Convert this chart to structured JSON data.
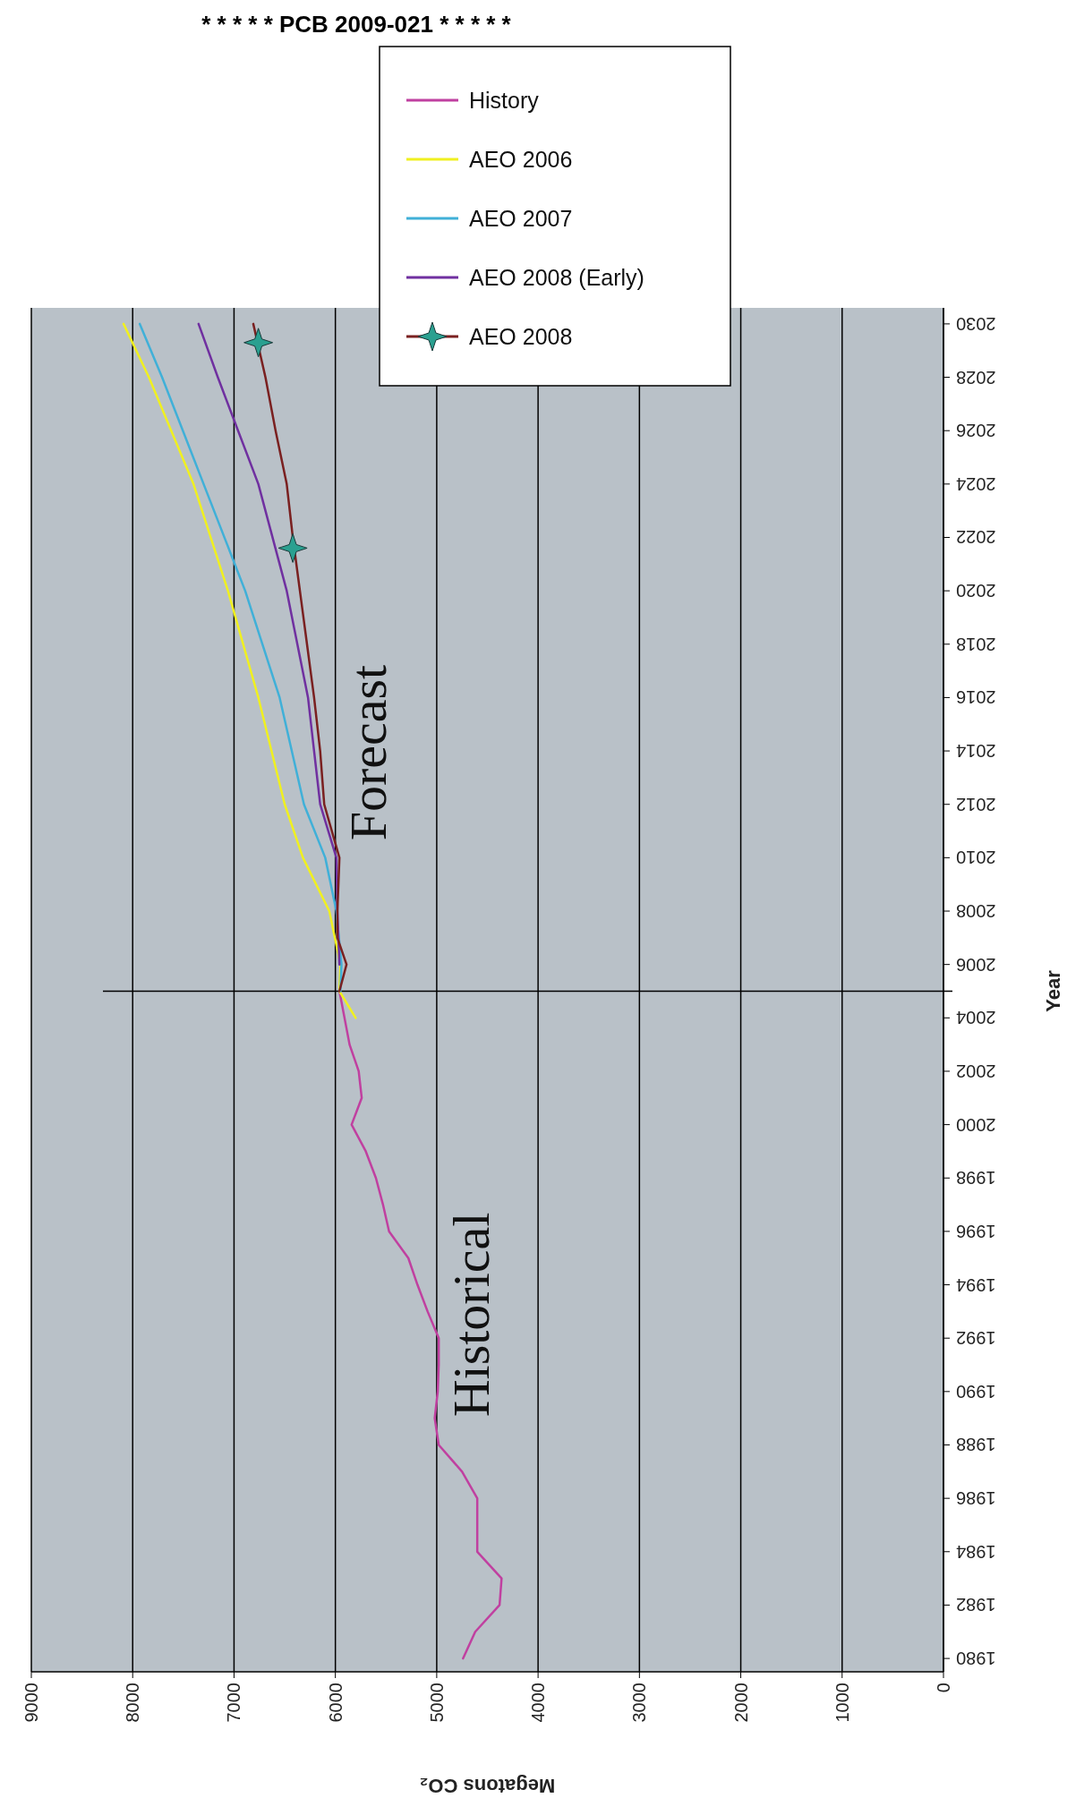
{
  "chart_data": {
    "type": "line",
    "xlabel": "Megatons CO₂",
    "ylabel": "Year",
    "xlim": [
      9000,
      0
    ],
    "xticks": [
      9000,
      8000,
      7000,
      6000,
      5000,
      4000,
      3000,
      2000,
      1000,
      0
    ],
    "ylim": [
      1979.5,
      2030.6
    ],
    "yticks": [
      1980,
      1982,
      1984,
      1986,
      1988,
      1990,
      1992,
      1994,
      1996,
      1998,
      2000,
      2002,
      2004,
      2006,
      2008,
      2010,
      2012,
      2014,
      2016,
      2018,
      2020,
      2022,
      2024,
      2026,
      2028,
      2030
    ],
    "grid": "x",
    "legend": "top",
    "line_style": "solid",
    "series": [
      {
        "name": "History",
        "color": "#c040a0",
        "values": [
          1980,
          1981,
          1982,
          1983,
          1984,
          1985,
          1986,
          1987,
          1988,
          1989,
          1990,
          1991,
          1992,
          1993,
          1994,
          1995,
          1996,
          1997,
          1998,
          1999,
          2000,
          2001,
          2002,
          2003,
          2004,
          2005
        ],
        "x": [
          4740,
          4620,
          4380,
          4360,
          4600,
          4600,
          4600,
          4750,
          4980,
          5020,
          4990,
          4980,
          4980,
          5090,
          5190,
          5280,
          5470,
          5530,
          5600,
          5700,
          5840,
          5740,
          5770,
          5860,
          5910,
          5960
        ]
      },
      {
        "name": "AEO 2006",
        "color": "#f0f020",
        "values": [
          2004,
          2005,
          2006,
          2008,
          2010,
          2012,
          2016,
          2020,
          2024,
          2028,
          2030
        ],
        "x": [
          5800,
          5960,
          5950,
          6060,
          6320,
          6500,
          6760,
          7060,
          7400,
          7840,
          8090
        ]
      },
      {
        "name": "AEO 2007",
        "color": "#40b0d8",
        "values": [
          2005,
          2006,
          2008,
          2010,
          2012,
          2016,
          2020,
          2024,
          2028,
          2030
        ],
        "x": [
          5950,
          5940,
          5990,
          6100,
          6310,
          6550,
          6890,
          7300,
          7710,
          7930
        ]
      },
      {
        "name": "AEO 2008 (Early)",
        "color": "#7030a0",
        "values": [
          2006,
          2008,
          2010,
          2012,
          2014,
          2016,
          2020,
          2024,
          2028,
          2030
        ],
        "x": [
          5960,
          5980,
          5990,
          6150,
          6210,
          6270,
          6480,
          6760,
          7160,
          7350
        ]
      },
      {
        "name": "AEO 2008",
        "color": "#7a2020",
        "values": [
          2005,
          2006,
          2007,
          2008,
          2010,
          2012,
          2014,
          2016,
          2018,
          2020,
          2022,
          2024,
          2026,
          2028,
          2030
        ],
        "x": [
          5960,
          5890,
          5980,
          5980,
          5960,
          6110,
          6150,
          6210,
          6280,
          6350,
          6420,
          6480,
          6590,
          6690,
          6810
        ]
      },
      {
        "type": "scatter",
        "marker": "star",
        "color": "#2aa090",
        "values": [
          2021.6,
          2029.3
        ],
        "x": [
          6420,
          6760
        ]
      }
    ],
    "ref_lines": [
      {
        "axis": "y",
        "value": 2005,
        "color": "#000000"
      }
    ],
    "annotations": [
      "* * * * * PCB 2009-021 * * * * *",
      "Historical",
      "Forecast"
    ]
  }
}
